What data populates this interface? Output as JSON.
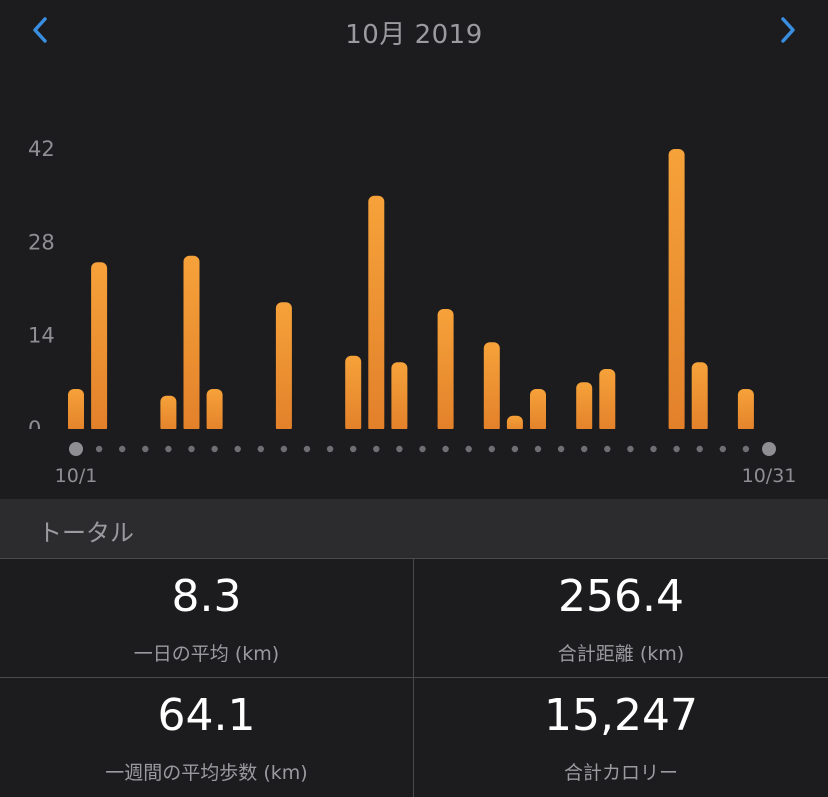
{
  "header": {
    "title": "10月 2019",
    "prev_icon": "chevron-left-icon",
    "next_icon": "chevron-right-icon",
    "accent_color": "#3a8ee0"
  },
  "chart_data": {
    "type": "bar",
    "title": "",
    "xlabel": "",
    "ylabel": "",
    "ylim": [
      0,
      42
    ],
    "yticks": [
      "0",
      "14",
      "28",
      "42"
    ],
    "x_start_label": "10/1",
    "x_end_label": "10/31",
    "bar_color": "#f0922e",
    "categories": [
      "10/1",
      "10/2",
      "10/3",
      "10/4",
      "10/5",
      "10/6",
      "10/7",
      "10/8",
      "10/9",
      "10/10",
      "10/11",
      "10/12",
      "10/13",
      "10/14",
      "10/15",
      "10/16",
      "10/17",
      "10/18",
      "10/19",
      "10/20",
      "10/21",
      "10/22",
      "10/23",
      "10/24",
      "10/25",
      "10/26",
      "10/27",
      "10/28",
      "10/29",
      "10/30",
      "10/31"
    ],
    "values": [
      6,
      25,
      0,
      0,
      5,
      26,
      6,
      0,
      0,
      19,
      0,
      0,
      11,
      35,
      10,
      0,
      18,
      0,
      13,
      2,
      6,
      0,
      7,
      9,
      0,
      0,
      42,
      10,
      0,
      6,
      0
    ]
  },
  "section": {
    "title": "トータル"
  },
  "stats": [
    {
      "value": "8.3",
      "label": "一日の平均 (km)"
    },
    {
      "value": "256.4",
      "label": "合計距離 (km)"
    },
    {
      "value": "64.1",
      "label": "一週間の平均歩数 (km)"
    },
    {
      "value": "15,247",
      "label": "合計カロリー"
    }
  ]
}
